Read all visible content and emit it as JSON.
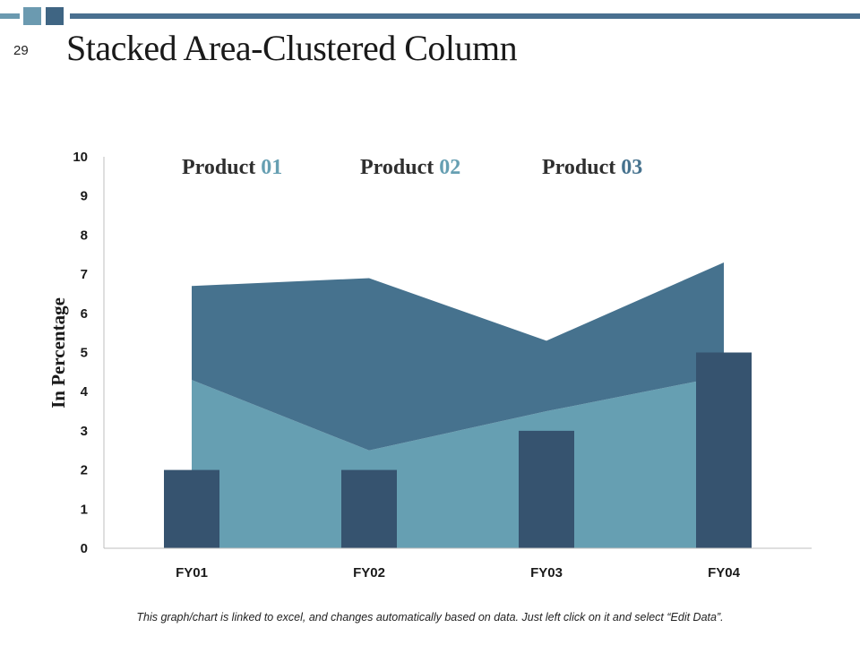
{
  "slide": {
    "number": "29",
    "title": "Stacked Area-Clustered Column",
    "footnote": "This graph/chart is linked to excel, and changes automatically based on data. Just left click on it and select “Edit Data”."
  },
  "colors": {
    "accent": "#4a7090",
    "area_lower": "#669fb2",
    "area_upper": "#46728e",
    "column": "#36536f",
    "axis": "#bfbfbf",
    "legend_text": "#2f2f2f"
  },
  "chart_data": {
    "type": "bar",
    "combo": "stacked area + clustered column",
    "categories": [
      "FY01",
      "FY02",
      "FY03",
      "FY04"
    ],
    "ylabel": "In Percentage",
    "ylim": [
      0,
      10
    ],
    "yticks": [
      "0",
      "1",
      "2",
      "3",
      "4",
      "5",
      "6",
      "7",
      "8",
      "9",
      "10"
    ],
    "legend_position": "top",
    "legend": [
      {
        "prefix": "Product ",
        "number": "01",
        "color": "#669fb2"
      },
      {
        "prefix": "Product ",
        "number": "02",
        "color": "#669fb2"
      },
      {
        "prefix": "Product ",
        "number": "03",
        "color": "#46728e"
      }
    ],
    "series": [
      {
        "name": "Product 01",
        "type": "stacked-area",
        "values": [
          4.3,
          2.5,
          3.5,
          4.4
        ]
      },
      {
        "name": "Product 02",
        "type": "stacked-area",
        "values": [
          2.4,
          4.4,
          1.8,
          2.9
        ]
      },
      {
        "name": "Product 03",
        "type": "column",
        "values": [
          2,
          2,
          3,
          5
        ]
      }
    ]
  }
}
